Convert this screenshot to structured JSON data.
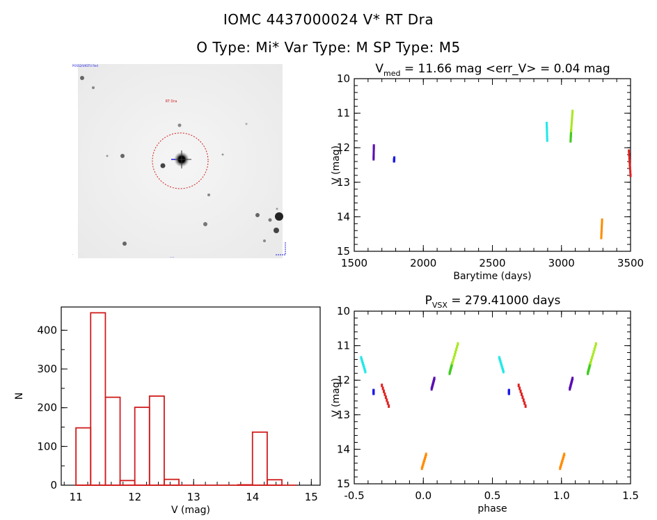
{
  "header": {
    "title": "IOMC 4437000024    V* RT Dra",
    "subtitle": "O Type: Mi*  Var Type: M   SP Type: M5"
  },
  "image_panel": {
    "labels": [
      "POSS2/UKSTU Red",
      "RT Dra",
      "N",
      "E"
    ]
  },
  "colors": {
    "hist": "#d01c1c",
    "aperture": "#d01c1c",
    "marker": "#1a1ae6"
  },
  "chart_data": [
    {
      "type": "scatter",
      "name": "lightcurve",
      "title_main": "V",
      "title_sub": "med",
      "title_rest": " = 11.66 mag <err_V> = 0.04 mag",
      "xlabel": "Barytime (days)",
      "ylabel": "V (mag)",
      "xlim": [
        1500,
        3500
      ],
      "ylim": [
        15,
        10
      ],
      "xticks": [
        1500,
        2000,
        2500,
        3000,
        3500
      ],
      "yticks": [
        10,
        11,
        12,
        13,
        14,
        15
      ],
      "segments": [
        {
          "color": "#5a0fb0",
          "x": [
            1640,
            1642
          ],
          "y": [
            12.32,
            11.95
          ]
        },
        {
          "color": "#1a1ae6",
          "x": [
            1788,
            1790
          ],
          "y": [
            12.38,
            12.3
          ]
        },
        {
          "color": "#22e8e8",
          "x": [
            2893,
            2897
          ],
          "y": [
            11.3,
            11.78
          ]
        },
        {
          "color": "#40cc20",
          "x": [
            3066,
            3070
          ],
          "y": [
            11.8,
            11.5
          ]
        },
        {
          "color": "#a8e820",
          "x": [
            3070,
            3080
          ],
          "y": [
            11.5,
            10.95
          ]
        },
        {
          "color": "#ff8c00",
          "x": [
            3288,
            3294
          ],
          "y": [
            14.6,
            14.1
          ]
        },
        {
          "color": "#e02020",
          "x": [
            3488,
            3500
          ],
          "y": [
            12.1,
            12.8
          ]
        }
      ]
    },
    {
      "type": "scatter",
      "name": "phased",
      "title_main": "P",
      "title_sub": "VSX",
      "title_rest": " = 279.41000 days",
      "xlabel": "phase",
      "ylabel": "V (mag)",
      "xlim": [
        -0.5,
        1.5
      ],
      "ylim": [
        15,
        10
      ],
      "xticks": [
        -0.5,
        0.0,
        0.5,
        1.0,
        1.5
      ],
      "xtick_labels": [
        "-0.5",
        "0.0",
        "0.5",
        "1.0",
        "1.5"
      ],
      "yticks": [
        10,
        11,
        12,
        13,
        14,
        15
      ],
      "segments": [
        {
          "color": "#22e8e8",
          "x": [
            -0.45,
            -0.42
          ],
          "y": [
            11.35,
            11.75
          ]
        },
        {
          "color": "#1a1ae6",
          "x": [
            -0.36,
            -0.36
          ],
          "y": [
            12.3,
            12.38
          ]
        },
        {
          "color": "#e02020",
          "x": [
            -0.3,
            -0.25
          ],
          "y": [
            12.15,
            12.75
          ]
        },
        {
          "color": "#ff8c00",
          "x": [
            -0.01,
            0.02
          ],
          "y": [
            14.55,
            14.15
          ]
        },
        {
          "color": "#5a0fb0",
          "x": [
            0.06,
            0.08
          ],
          "y": [
            12.25,
            11.95
          ]
        },
        {
          "color": "#40cc20",
          "x": [
            0.19,
            0.21
          ],
          "y": [
            11.8,
            11.5
          ]
        },
        {
          "color": "#a8e820",
          "x": [
            0.21,
            0.25
          ],
          "y": [
            11.5,
            10.95
          ]
        },
        {
          "color": "#22e8e8",
          "x": [
            0.55,
            0.58
          ],
          "y": [
            11.35,
            11.75
          ]
        },
        {
          "color": "#1a1ae6",
          "x": [
            0.62,
            0.62
          ],
          "y": [
            12.3,
            12.38
          ]
        },
        {
          "color": "#e02020",
          "x": [
            0.69,
            0.74
          ],
          "y": [
            12.15,
            12.75
          ]
        },
        {
          "color": "#ff8c00",
          "x": [
            0.99,
            1.02
          ],
          "y": [
            14.55,
            14.15
          ]
        },
        {
          "color": "#5a0fb0",
          "x": [
            1.06,
            1.08
          ],
          "y": [
            12.25,
            11.95
          ]
        },
        {
          "color": "#40cc20",
          "x": [
            1.19,
            1.21
          ],
          "y": [
            11.8,
            11.5
          ]
        },
        {
          "color": "#a8e820",
          "x": [
            1.21,
            1.25
          ],
          "y": [
            11.5,
            10.95
          ]
        }
      ]
    },
    {
      "type": "bar",
      "name": "histogram",
      "xlabel": "V (mag)",
      "ylabel": "N",
      "xlim": [
        10.75,
        15.15
      ],
      "ylim": [
        0,
        460
      ],
      "xticks": [
        11,
        12,
        13,
        14,
        15
      ],
      "yticks": [
        0,
        100,
        200,
        300,
        400
      ],
      "bin_edges": [
        11.0,
        11.25,
        11.5,
        11.75,
        12.0,
        12.25,
        12.5,
        12.75,
        13.0,
        13.25,
        13.5,
        13.75,
        14.0,
        14.25,
        14.5,
        14.75
      ],
      "counts": [
        148,
        445,
        227,
        12,
        201,
        230,
        15,
        0,
        0,
        0,
        0,
        1,
        137,
        14,
        0
      ]
    }
  ]
}
